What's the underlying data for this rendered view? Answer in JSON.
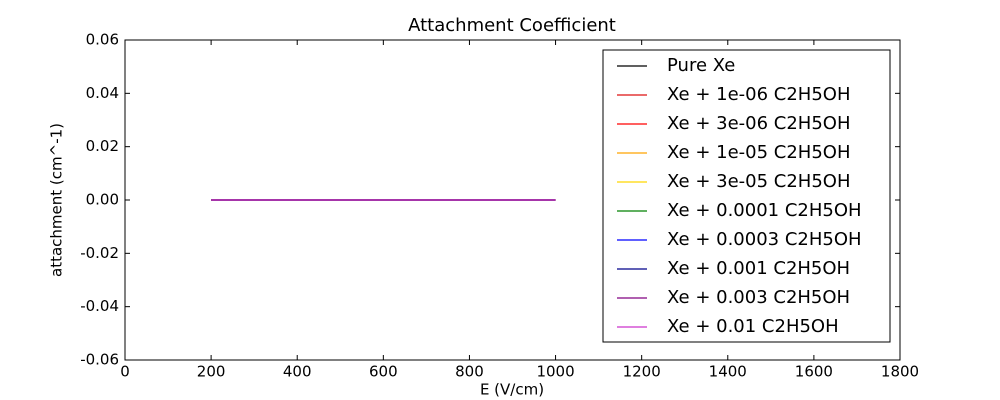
{
  "chart_data": {
    "type": "line",
    "title": "Attachment Coefficient",
    "x_label": "E (V/cm)",
    "y_label": "attachment (cm^-1)",
    "x": [
      200,
      1000
    ],
    "series": [
      {
        "name": "Pure Xe",
        "color": "#000000",
        "values": [
          0,
          0
        ]
      },
      {
        "name": "Xe + 1e-06 C2H5OH",
        "color": "#dd1111",
        "values": [
          0,
          0
        ]
      },
      {
        "name": "Xe + 3e-06 C2H5OH",
        "color": "#ff0000",
        "values": [
          0,
          0
        ]
      },
      {
        "name": "Xe + 1e-05 C2H5OH",
        "color": "#ffa500",
        "values": [
          0,
          0
        ]
      },
      {
        "name": "Xe + 3e-05 C2H5OH",
        "color": "#ffd700",
        "values": [
          0,
          0
        ]
      },
      {
        "name": "Xe + 0.0001 C2H5OH",
        "color": "#008000",
        "values": [
          0,
          0
        ]
      },
      {
        "name": "Xe + 0.0003 C2H5OH",
        "color": "#0000ff",
        "values": [
          0,
          0
        ]
      },
      {
        "name": "Xe + 0.001 C2H5OH",
        "color": "#00008b",
        "values": [
          0,
          0
        ]
      },
      {
        "name": "Xe + 0.003 C2H5OH",
        "color": "#800080",
        "values": [
          0,
          0
        ]
      },
      {
        "name": "Xe + 0.01 C2H5OH",
        "color": "#cc33cc",
        "values": [
          0,
          0
        ]
      }
    ],
    "xlim": [
      0,
      1800
    ],
    "xticks": [
      0,
      200,
      400,
      600,
      800,
      1000,
      1200,
      1400,
      1600,
      1800
    ],
    "ylim": [
      -0.06,
      0.06
    ],
    "yticks": [
      {
        "value": -0.06,
        "label": "-0.06"
      },
      {
        "value": -0.04,
        "label": "-0.04"
      },
      {
        "value": -0.02,
        "label": "-0.02"
      },
      {
        "value": 0,
        "label": "0.00"
      },
      {
        "value": 0.02,
        "label": "0.02"
      },
      {
        "value": 0.04,
        "label": "0.04"
      },
      {
        "value": 0.06,
        "label": "0.06"
      }
    ],
    "grid": false,
    "legend_position": "upper right"
  }
}
